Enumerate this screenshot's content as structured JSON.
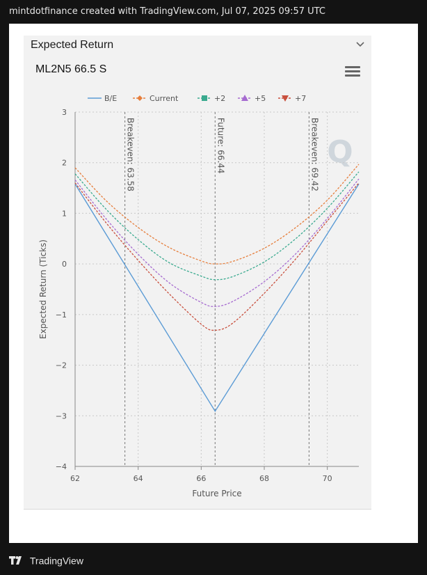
{
  "header": {
    "caption": "mintdotfinance created with TradingView.com, Jul 07, 2025 09:57 UTC"
  },
  "panel": {
    "title": "Expected Return",
    "chevron_icon": "chevron-down-icon",
    "menu_icon": "hamburger-menu-icon"
  },
  "chart_data": {
    "type": "line",
    "title": "ML2N5 66.5 S",
    "xlabel": "Future Price",
    "ylabel": "Expected Return (Ticks)",
    "xlim": [
      62,
      71
    ],
    "ylim": [
      -4,
      3
    ],
    "xticks": [
      "62",
      "64",
      "66",
      "68",
      "70"
    ],
    "yticks": [
      "3",
      "2",
      "1",
      "0",
      "−1",
      "−2",
      "−3",
      "−4"
    ],
    "grid": true,
    "legend_position": "top",
    "watermark": "Q",
    "series": [
      {
        "name": "B/E",
        "color": "#5b9bd5",
        "style": "solid",
        "marker": "line",
        "points": [
          [
            62,
            1.58
          ],
          [
            66.44,
            -2.91
          ],
          [
            71,
            1.58
          ]
        ]
      },
      {
        "name": "Current",
        "color": "#e67e3c",
        "style": "dashed",
        "marker": "diamond",
        "points": [
          [
            62,
            1.9
          ],
          [
            63,
            1.24
          ],
          [
            64,
            0.72
          ],
          [
            65,
            0.32
          ],
          [
            66,
            0.06
          ],
          [
            66.44,
            0.0
          ],
          [
            67,
            0.05
          ],
          [
            68,
            0.31
          ],
          [
            69,
            0.72
          ],
          [
            70,
            1.26
          ],
          [
            71,
            1.97
          ]
        ]
      },
      {
        "name": "+2",
        "color": "#3aaa8f",
        "style": "dashed",
        "marker": "square",
        "points": [
          [
            62,
            1.78
          ],
          [
            63,
            1.07
          ],
          [
            64,
            0.48
          ],
          [
            65,
            0.02
          ],
          [
            66,
            -0.24
          ],
          [
            66.44,
            -0.31
          ],
          [
            67,
            -0.25
          ],
          [
            68,
            0.04
          ],
          [
            69,
            0.5
          ],
          [
            70,
            1.1
          ],
          [
            71,
            1.82
          ]
        ]
      },
      {
        "name": "+5",
        "color": "#a66bd0",
        "style": "dashed",
        "marker": "triangle-up",
        "points": [
          [
            62,
            1.66
          ],
          [
            63,
            0.88
          ],
          [
            64,
            0.19
          ],
          [
            65,
            -0.38
          ],
          [
            66,
            -0.76
          ],
          [
            66.44,
            -0.84
          ],
          [
            67,
            -0.74
          ],
          [
            68,
            -0.35
          ],
          [
            69,
            0.2
          ],
          [
            70,
            0.9
          ],
          [
            71,
            1.68
          ]
        ]
      },
      {
        "name": "+7",
        "color": "#c9503e",
        "style": "dashed",
        "marker": "triangle-down",
        "points": [
          [
            62,
            1.6
          ],
          [
            63,
            0.8
          ],
          [
            64,
            0.07
          ],
          [
            65,
            -0.6
          ],
          [
            66,
            -1.19
          ],
          [
            66.44,
            -1.31
          ],
          [
            67,
            -1.17
          ],
          [
            68,
            -0.58
          ],
          [
            69,
            0.1
          ],
          [
            70,
            0.85
          ],
          [
            71,
            1.6
          ]
        ]
      }
    ],
    "vlines": [
      {
        "x": 63.58,
        "label": "Breakeven: 63.58"
      },
      {
        "x": 66.44,
        "label": "Future: 66.44"
      },
      {
        "x": 69.42,
        "label": "Breakeven: 69.42"
      }
    ]
  },
  "footer": {
    "logo_icon": "tradingview-logo-icon",
    "brand": "TradingView"
  }
}
